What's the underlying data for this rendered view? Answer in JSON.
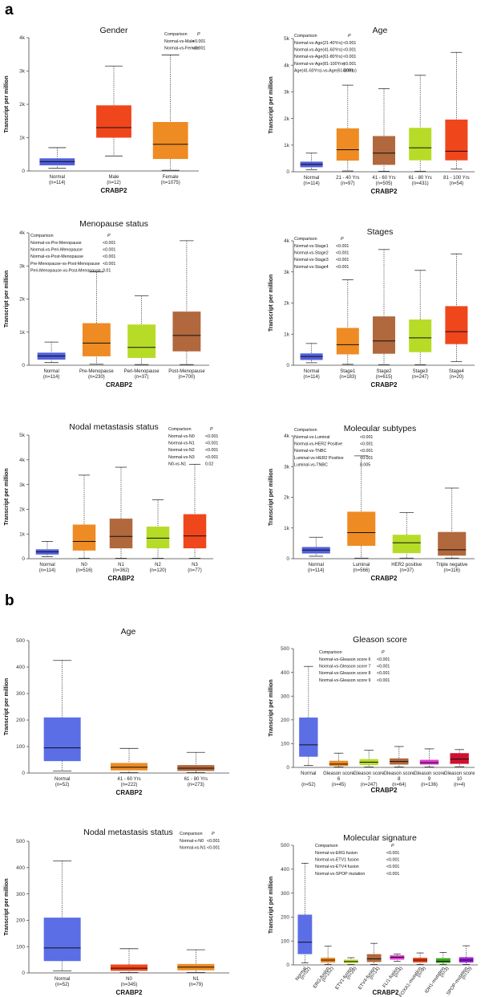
{
  "panel_labels": [
    "a",
    "b"
  ],
  "chart_data": [
    {
      "id": "a-gender",
      "type": "box",
      "title": "Gender",
      "xlabel": "CRABP2",
      "ylabel": "Transcript per million",
      "ylim": [
        0,
        4000
      ],
      "yticks": [
        0,
        1000,
        2000,
        3000,
        4000
      ],
      "yticklabels": [
        "0",
        "1k",
        "2k",
        "3k",
        "4k"
      ],
      "categories": [
        "Normal",
        "Male",
        "Female"
      ],
      "ns": [
        "(n=114)",
        "(n=12)",
        "(n=1075)"
      ],
      "colors": [
        "#4f5fdc",
        "#f0461c",
        "#ee8b22"
      ],
      "boxes": [
        {
          "min": 80,
          "q1": 170,
          "median": 280,
          "q3": 380,
          "max": 700
        },
        {
          "min": 450,
          "q1": 1000,
          "median": 1300,
          "q3": 1970,
          "max": 3150
        },
        {
          "min": 20,
          "q1": 360,
          "median": 800,
          "q3": 1470,
          "max": 3480
        }
      ],
      "table": {
        "header": [
          "Comparison",
          "P"
        ],
        "rows": [
          [
            "Normal-vs-Male",
            "<0.001"
          ],
          [
            "Normal-vs-Female",
            "<0.001"
          ]
        ]
      }
    },
    {
      "id": "a-age",
      "type": "box",
      "title": "Age",
      "xlabel": "CRABP2",
      "ylabel": "Transcript per million",
      "ylim": [
        0,
        5000
      ],
      "yticks": [
        0,
        1000,
        2000,
        3000,
        4000,
        5000
      ],
      "yticklabels": [
        "0",
        "1k",
        "2k",
        "3k",
        "4k",
        "5k"
      ],
      "categories": [
        "Normal",
        "21 - 40 Yrs",
        "41 - 60 Yrs",
        "61 - 80 Yrs",
        "81 - 100 Yrs"
      ],
      "ns": [
        "(n=114)",
        "(n=97)",
        "(n=505)",
        "(n=431)",
        "(n=54)"
      ],
      "colors": [
        "#4f5fdc",
        "#ee8b22",
        "#b0683c",
        "#b7dc28",
        "#f0461c"
      ],
      "boxes": [
        {
          "min": 80,
          "q1": 170,
          "median": 280,
          "q3": 380,
          "max": 700
        },
        {
          "min": 30,
          "q1": 420,
          "median": 830,
          "q3": 1630,
          "max": 3250
        },
        {
          "min": 20,
          "q1": 260,
          "median": 700,
          "q3": 1340,
          "max": 3120
        },
        {
          "min": 20,
          "q1": 430,
          "median": 900,
          "q3": 1650,
          "max": 3620
        },
        {
          "min": 100,
          "q1": 430,
          "median": 770,
          "q3": 1960,
          "max": 4480
        }
      ],
      "table": {
        "header": [
          "Comparison",
          "P"
        ],
        "rows": [
          [
            "Normal-vs-Age(21-40Yrs)",
            "<0.001"
          ],
          [
            "Normal-vs-Age(41-60Yrs)",
            "<0.001"
          ],
          [
            "Normal-vs-Age(61-80Yrs)",
            "<0.001"
          ],
          [
            "Normal-vs-Age(81-100Yrs)",
            "<0.001"
          ],
          [
            "Age(41-60Yrs)-vs-Age(61-80Yrs)",
            "0.001"
          ]
        ]
      }
    },
    {
      "id": "a-menopause",
      "type": "box",
      "title": "Menopause status",
      "xlabel": "CRABP2",
      "ylabel": "Transcript per million",
      "ylim": [
        0,
        4000
      ],
      "yticks": [
        0,
        1000,
        2000,
        3000,
        4000
      ],
      "yticklabels": [
        "0",
        "1k",
        "2k",
        "3k",
        "4k"
      ],
      "categories": [
        "Normal",
        "Pre-Menopause",
        "Peri-Menopause",
        "Post-Menopause"
      ],
      "ns": [
        "(n=114)",
        "(n=230)",
        "(n=37)",
        "(n=700)"
      ],
      "colors": [
        "#4f5fdc",
        "#ee8b22",
        "#b7dc28",
        "#b0683c"
      ],
      "boxes": [
        {
          "min": 80,
          "q1": 170,
          "median": 280,
          "q3": 380,
          "max": 700
        },
        {
          "min": 30,
          "q1": 270,
          "median": 670,
          "q3": 1270,
          "max": 2820
        },
        {
          "min": 20,
          "q1": 220,
          "median": 540,
          "q3": 1230,
          "max": 2100
        },
        {
          "min": 20,
          "q1": 420,
          "median": 900,
          "q3": 1620,
          "max": 3760
        }
      ],
      "table": {
        "header": [
          "Comparison",
          "P"
        ],
        "rows": [
          [
            "Normal-vs-Pre-Menopause",
            "<0.001"
          ],
          [
            "Normal-vs-Peri-Menopause",
            "<0.001"
          ],
          [
            "Normal-vs-Post-Menopause",
            "<0.001"
          ],
          [
            "Pre-Menopause-vs-Post-Menopause",
            "<0.001"
          ],
          [
            "Peri-Menopause-vs-Post-Menopause",
            "0.01"
          ]
        ]
      }
    },
    {
      "id": "a-stages",
      "type": "box",
      "title": "Stages",
      "xlabel": "CRABP2",
      "ylabel": "Transcript per million",
      "ylim": [
        0,
        4000
      ],
      "yticks": [
        0,
        1000,
        2000,
        3000,
        4000
      ],
      "yticklabels": [
        "0",
        "1k",
        "2k",
        "3k",
        "4k"
      ],
      "categories": [
        "Normal",
        "Stage1",
        "Stage2",
        "Stage3",
        "Stage4"
      ],
      "ns": [
        "(n=114)",
        "(n=183)",
        "(n=615)",
        "(n=247)",
        "(n=20)"
      ],
      "colors": [
        "#4f5fdc",
        "#ee8b22",
        "#b0683c",
        "#b7dc28",
        "#f0461c"
      ],
      "boxes": [
        {
          "min": 80,
          "q1": 170,
          "median": 280,
          "q3": 380,
          "max": 700
        },
        {
          "min": 30,
          "q1": 350,
          "median": 660,
          "q3": 1200,
          "max": 2750
        },
        {
          "min": 20,
          "q1": 370,
          "median": 780,
          "q3": 1570,
          "max": 3720
        },
        {
          "min": 20,
          "q1": 420,
          "median": 880,
          "q3": 1470,
          "max": 3050
        },
        {
          "min": 120,
          "q1": 680,
          "median": 1080,
          "q3": 1900,
          "max": 3580
        }
      ],
      "table": {
        "header": [
          "Comparison",
          "P"
        ],
        "rows": [
          [
            "Normal-vs-Stage1",
            "<0.001"
          ],
          [
            "Normal-vs-Stage2",
            "<0.001"
          ],
          [
            "Normal-vs-Stage3",
            "<0.001"
          ],
          [
            "Normal-vs-Stage4",
            "<0.001"
          ]
        ]
      }
    },
    {
      "id": "a-nodal",
      "type": "box",
      "title": "Nodal metastasis status",
      "xlabel": "CRABP2",
      "ylabel": "Transcript per million",
      "ylim": [
        0,
        5000
      ],
      "yticks": [
        0,
        1000,
        2000,
        3000,
        4000,
        5000
      ],
      "yticklabels": [
        "0",
        "1k",
        "2k",
        "3k",
        "4k",
        "5k"
      ],
      "categories": [
        "Normal",
        "N0",
        "N1",
        "N2",
        "N3"
      ],
      "ns": [
        "(n=114)",
        "(n=516)",
        "(n=362)",
        "(n=120)",
        "(n=77)"
      ],
      "colors": [
        "#4f5fdc",
        "#ee8b22",
        "#b0683c",
        "#b7dc28",
        "#f0461c"
      ],
      "boxes": [
        {
          "min": 80,
          "q1": 170,
          "median": 280,
          "q3": 380,
          "max": 700
        },
        {
          "min": 20,
          "q1": 330,
          "median": 700,
          "q3": 1380,
          "max": 3380
        },
        {
          "min": 20,
          "q1": 420,
          "median": 900,
          "q3": 1620,
          "max": 3700
        },
        {
          "min": 20,
          "q1": 420,
          "median": 830,
          "q3": 1300,
          "max": 2380
        },
        {
          "min": 20,
          "q1": 420,
          "median": 920,
          "q3": 1800,
          "max": 3820
        }
      ],
      "table": {
        "header": [
          "Comparison",
          "P"
        ],
        "rows": [
          [
            "Normal-vs-N0",
            "<0.001"
          ],
          [
            "Normal-vs-N1",
            "<0.001"
          ],
          [
            "Normal-vs-N2",
            "<0.001"
          ],
          [
            "Normal-vs-N3",
            "<0.001"
          ],
          [
            "N0-vs-N1",
            "0.02"
          ]
        ]
      }
    },
    {
      "id": "a-molecular",
      "type": "box",
      "title": "Molecular subtypes",
      "xlabel": "CRABP2",
      "ylabel": "Transcript per million",
      "ylim": [
        0,
        4000
      ],
      "yticks": [
        0,
        1000,
        2000,
        3000,
        4000
      ],
      "yticklabels": [
        "0",
        "1k",
        "2k",
        "3k",
        "4k"
      ],
      "categories": [
        "Normal",
        "Luminal",
        "HER2 positive",
        "Triple negative"
      ],
      "ns": [
        "(n=114)",
        "(n=566)",
        "(n=37)",
        "(n=116)"
      ],
      "colors": [
        "#4f5fdc",
        "#ee8b22",
        "#b7dc28",
        "#b0683c"
      ],
      "boxes": [
        {
          "min": 80,
          "q1": 170,
          "median": 280,
          "q3": 380,
          "max": 700
        },
        {
          "min": 20,
          "q1": 420,
          "median": 850,
          "q3": 1530,
          "max": 3350
        },
        {
          "min": 20,
          "q1": 180,
          "median": 520,
          "q3": 780,
          "max": 1500
        },
        {
          "min": 20,
          "q1": 100,
          "median": 290,
          "q3": 870,
          "max": 2300
        }
      ],
      "table": {
        "header": [
          "Comparison",
          "P"
        ],
        "rows": [
          [
            "Normal-vs-Luminal",
            "<0.001"
          ],
          [
            "Normal-vs-HER2 Positive",
            "<0.001"
          ],
          [
            "Normal-vs-TNBC",
            "<0.001"
          ],
          [
            "Luminal-vs-HER2 Positive",
            "<0.001"
          ],
          [
            "Luminal-vs-TNBC",
            "0.005"
          ]
        ]
      }
    },
    {
      "id": "b-age",
      "type": "box",
      "title": "Age",
      "xlabel": "CRABP2",
      "ylabel": "Transcript per million",
      "ylim": [
        0,
        500
      ],
      "yticks": [
        0,
        100,
        200,
        300,
        400,
        500
      ],
      "yticklabels": [
        "0",
        "100",
        "200",
        "300",
        "400",
        "500"
      ],
      "categories": [
        "Normal",
        "41 - 60 Yrs",
        "61 - 80 Yrs"
      ],
      "ns": [
        "(n=52)",
        "(n=222)",
        "(n=273)"
      ],
      "colors": [
        "#5b6ee6",
        "#ee8b22",
        "#b0683c"
      ],
      "boxes": [
        {
          "min": 8,
          "q1": 45,
          "median": 95,
          "q3": 210,
          "max": 425
        },
        {
          "min": 2,
          "q1": 10,
          "median": 22,
          "q3": 38,
          "max": 93
        },
        {
          "min": 2,
          "q1": 8,
          "median": 18,
          "q3": 30,
          "max": 78
        }
      ],
      "table": null
    },
    {
      "id": "b-gleason",
      "type": "box",
      "title": "Gleason score",
      "xlabel": "CRABP2",
      "ylabel": "Transcript per million",
      "ylim": [
        0,
        500
      ],
      "yticks": [
        0,
        100,
        200,
        300,
        400,
        500
      ],
      "yticklabels": [
        "0",
        "100",
        "200",
        "300",
        "400",
        "500"
      ],
      "categories": [
        "Normal",
        "Gleason score 6",
        "Gleason score 7",
        "Gleason score 8",
        "Gleason score 9",
        "Gleason score 10"
      ],
      "catlines": [
        [
          "Normal"
        ],
        [
          "Gleason score",
          "6"
        ],
        [
          "Gleason score",
          "7"
        ],
        [
          "Gleason score",
          "8"
        ],
        [
          "Gleason score",
          "9"
        ],
        [
          "Gleason score",
          "10"
        ]
      ],
      "ns": [
        "(n=52)",
        "(n=45)",
        "(n=247)",
        "(n=64)",
        "(n=136)",
        "(n=4)"
      ],
      "colors": [
        "#5b6ee6",
        "#ee8b22",
        "#b7dc28",
        "#b0683c",
        "#e03ad0",
        "#d01030"
      ],
      "boxes": [
        {
          "min": 8,
          "q1": 45,
          "median": 95,
          "q3": 210,
          "max": 425
        },
        {
          "min": 2,
          "q1": 6,
          "median": 14,
          "q3": 28,
          "max": 60
        },
        {
          "min": 2,
          "q1": 10,
          "median": 22,
          "q3": 35,
          "max": 72
        },
        {
          "min": 2,
          "q1": 12,
          "median": 25,
          "q3": 38,
          "max": 88
        },
        {
          "min": 2,
          "q1": 12,
          "median": 20,
          "q3": 32,
          "max": 78
        },
        {
          "min": 3,
          "q1": 15,
          "median": 35,
          "q3": 60,
          "max": 75
        }
      ],
      "table": {
        "header": [
          "Comparison",
          "P"
        ],
        "rows": [
          [
            "Normal-vs-Gleason score 6",
            "<0.001"
          ],
          [
            "Normal-vs-Gleason score 7",
            "<0.001"
          ],
          [
            "Normal-vs-Gleason score 8",
            "<0.001"
          ],
          [
            "Normal-vs-Gleason score 9",
            "<0.001"
          ]
        ]
      }
    },
    {
      "id": "b-nodal",
      "type": "box",
      "title": "Nodal metastasis status",
      "xlabel": "CRABP2",
      "ylabel": "Transcript per million",
      "ylim": [
        0,
        500
      ],
      "yticks": [
        0,
        100,
        200,
        300,
        400,
        500
      ],
      "yticklabels": [
        "0",
        "100",
        "200",
        "300",
        "400",
        "500"
      ],
      "categories": [
        "Normal",
        "N0",
        "N1"
      ],
      "ns": [
        "(n=52)",
        "(n=345)",
        "(n=79)"
      ],
      "colors": [
        "#5b6ee6",
        "#f0461c",
        "#ee8b22"
      ],
      "boxes": [
        {
          "min": 8,
          "q1": 45,
          "median": 95,
          "q3": 210,
          "max": 425
        },
        {
          "min": 2,
          "q1": 8,
          "median": 18,
          "q3": 32,
          "max": 92
        },
        {
          "min": 2,
          "q1": 10,
          "median": 22,
          "q3": 34,
          "max": 88
        }
      ],
      "table": {
        "header": [
          "Comparison",
          "P"
        ],
        "rows": [
          [
            "Normal-v-N0",
            "<0.001"
          ],
          [
            "Normal-vs-N1",
            "<0.001"
          ]
        ]
      }
    },
    {
      "id": "b-signature",
      "type": "box",
      "title": "Molecular signature",
      "xlabel": "CRABP2",
      "ylabel": "Transcript per million",
      "ylim": [
        0,
        500
      ],
      "yticks": [
        0,
        100,
        200,
        300,
        400,
        500
      ],
      "yticklabels": [
        "0",
        "100",
        "200",
        "300",
        "400",
        "500"
      ],
      "categories": [
        "Normal",
        "ERG-fusion",
        "ETV1-fusion",
        "ETV4-fusion",
        "FLI1-fusion",
        "FOXA1-mutation",
        "IDH1-mutation",
        "SPOP-mutation"
      ],
      "ns": [
        "(n=52)",
        "(n=152)",
        "(n=28)",
        "(n=14)",
        "(n=4)",
        "(n=9)",
        "(n=3)",
        "(n=10)"
      ],
      "colors": [
        "#5b6ee6",
        "#ee8b22",
        "#b7dc28",
        "#b0683c",
        "#e03ad0",
        "#f0461c",
        "#3aa81c",
        "#a020e0"
      ],
      "rotated": true,
      "boxes": [
        {
          "min": 8,
          "q1": 45,
          "median": 95,
          "q3": 210,
          "max": 425
        },
        {
          "min": 2,
          "q1": 10,
          "median": 20,
          "q3": 30,
          "max": 78
        },
        {
          "min": 2,
          "q1": 8,
          "median": 14,
          "q3": 22,
          "max": 30
        },
        {
          "min": 2,
          "q1": 12,
          "median": 25,
          "q3": 45,
          "max": 90
        },
        {
          "min": 15,
          "q1": 22,
          "median": 32,
          "q3": 40,
          "max": 45
        },
        {
          "min": 2,
          "q1": 10,
          "median": 20,
          "q3": 30,
          "max": 50
        },
        {
          "min": 2,
          "q1": 8,
          "median": 15,
          "q3": 28,
          "max": 52
        },
        {
          "min": 2,
          "q1": 10,
          "median": 20,
          "q3": 32,
          "max": 80
        }
      ],
      "table": {
        "header": [
          "Comparison",
          "P"
        ],
        "rows": [
          [
            "Normal-vs-ERG fusion",
            "<0.001"
          ],
          [
            "Normal-vs-ETV1 fusion",
            "<0.001"
          ],
          [
            "Normal-vs-ETV4 fusion",
            "<0.001"
          ],
          [
            "Normal-vs-SPOP mutation",
            "<0.001"
          ]
        ]
      }
    }
  ]
}
